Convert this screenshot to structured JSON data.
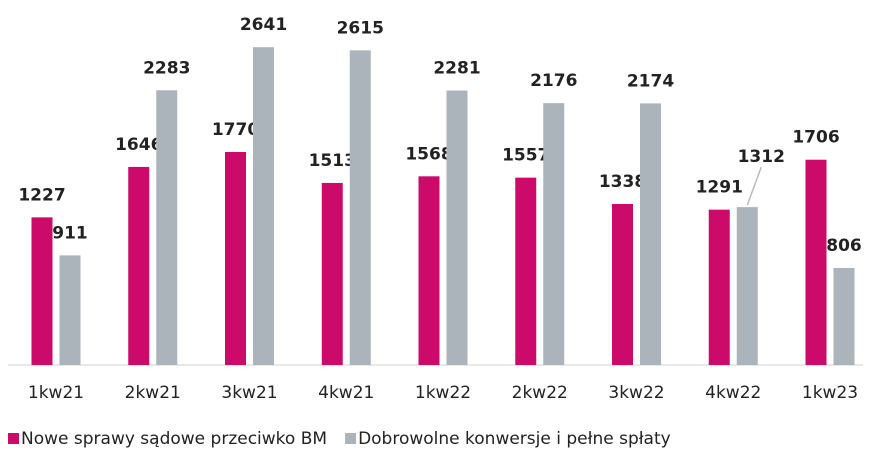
{
  "chart_data": {
    "type": "bar",
    "categories": [
      "1kw21",
      "2kw21",
      "3kw21",
      "4kw21",
      "1kw22",
      "2kw22",
      "3kw22",
      "4kw22",
      "1kw23"
    ],
    "series": [
      {
        "name": "Nowe sprawy sądowe przeciwko BM",
        "color": "#cc0a6a",
        "values": [
          1227,
          1646,
          1770,
          1513,
          1568,
          1557,
          1338,
          1291,
          1706
        ]
      },
      {
        "name": "Dobrowolne konwersje i pełne spłaty",
        "color": "#abb3bb",
        "values": [
          911,
          2283,
          2641,
          2615,
          2281,
          2176,
          2174,
          1312,
          806
        ]
      }
    ],
    "ylim": [
      0,
      3000
    ]
  }
}
